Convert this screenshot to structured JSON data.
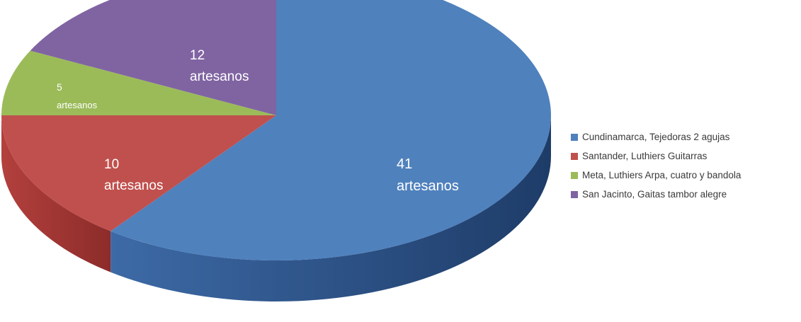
{
  "chart_data": {
    "type": "pie",
    "style": "3d",
    "unit": "artesanos",
    "slices": [
      {
        "legend": "Cundinamarca, Tejedoras 2 agujas",
        "value": 41,
        "color": "#4f81bd"
      },
      {
        "legend": "Santander, Luthiers Guitarras",
        "value": 10,
        "color": "#c0504d"
      },
      {
        "legend": "Meta, Luthiers Arpa, cuatro y bandola",
        "value": 5,
        "color": "#9bbb59"
      },
      {
        "legend": "San Jacinto, Gaitas tambor alegre",
        "value": 12,
        "color": "#8064a2"
      }
    ],
    "data_labels": [
      {
        "value": "41",
        "unit": "artesanos"
      },
      {
        "value": "10",
        "unit": "artesanos"
      },
      {
        "value": "5",
        "unit": "artesanos"
      },
      {
        "value": "12",
        "unit": "artesanos"
      }
    ],
    "legend_position": "right"
  }
}
